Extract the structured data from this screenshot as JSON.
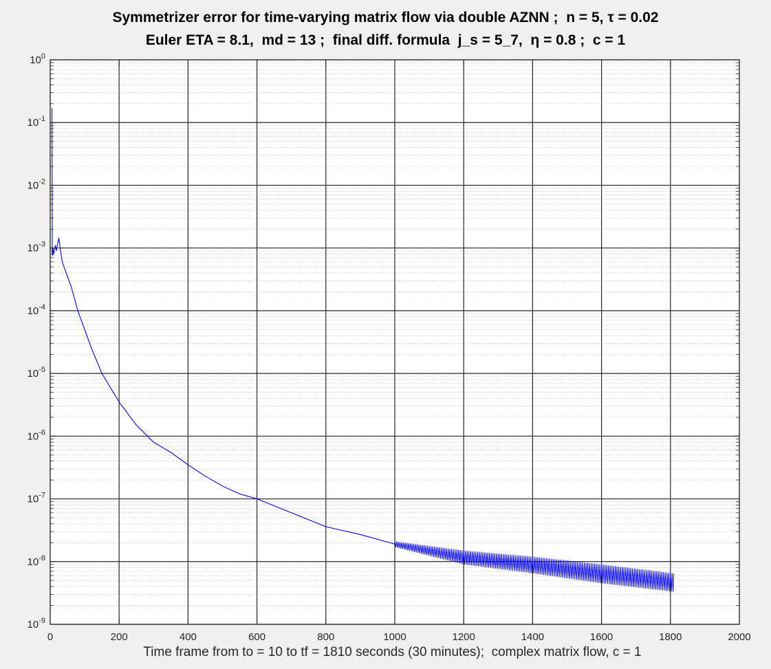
{
  "chart_data": {
    "type": "line",
    "title": "Symmetrizer error for time-varying matrix flow via double AZNN ;  n = 5, τ = 0.02",
    "subtitle": "Euler ETA = 8.1,  md = 13 ;  final diff. formula  j_s = 5_7,  η = 0.8 ;  c = 1",
    "xlabel": "Time frame from to = 10 to tf = 1810 seconds (30 minutes);  complex matrix flow, c = 1",
    "ylabel": "",
    "xlim": [
      0,
      2000
    ],
    "ylim": [
      1e-09,
      1
    ],
    "yscale": "log",
    "grid": "major and minor",
    "line_color": "#0000ff",
    "x_ticks": [
      0,
      200,
      400,
      600,
      800,
      1000,
      1200,
      1400,
      1600,
      1800,
      2000
    ],
    "y_ticks": [
      {
        "value": 1e-09,
        "base": "10",
        "exp": "-9"
      },
      {
        "value": 1e-08,
        "base": "10",
        "exp": "-8"
      },
      {
        "value": 1e-07,
        "base": "10",
        "exp": "-7"
      },
      {
        "value": 1e-06,
        "base": "10",
        "exp": "-6"
      },
      {
        "value": 1e-05,
        "base": "10",
        "exp": "-5"
      },
      {
        "value": 0.0001,
        "base": "10",
        "exp": "-4"
      },
      {
        "value": 0.001,
        "base": "10",
        "exp": "-3"
      },
      {
        "value": 0.01,
        "base": "10",
        "exp": "-2"
      },
      {
        "value": 0.1,
        "base": "10",
        "exp": "-1"
      },
      {
        "value": 1,
        "base": "10",
        "exp": "0"
      }
    ],
    "series": [
      {
        "x": [
          5,
          5.5,
          6,
          7,
          8,
          10,
          12,
          15,
          18,
          22,
          25,
          30,
          35,
          40,
          50,
          60,
          70,
          80,
          100,
          120,
          150,
          200,
          250,
          300,
          350,
          400,
          450,
          500,
          550,
          600,
          700,
          800,
          900,
          1000
        ],
        "y": [
          0.17,
          0.02,
          0.0008,
          0.00075,
          0.001,
          0.0008,
          0.0009,
          0.0011,
          0.0009,
          0.0012,
          0.00145,
          0.0009,
          0.0006,
          0.0005,
          0.00035,
          0.00025,
          0.00016,
          0.0001,
          5e-05,
          2.5e-05,
          1e-05,
          3.5e-06,
          1.5e-06,
          8e-07,
          5.5e-07,
          3.5e-07,
          2.3e-07,
          1.6e-07,
          1.2e-07,
          1e-07,
          6e-08,
          3.6e-08,
          2.7e-08,
          1.9e-08
        ]
      },
      {
        "type": "oscillating band",
        "x": [
          1000,
          1200,
          1400,
          1600,
          1810
        ],
        "upper": [
          2.1e-08,
          1.5e-08,
          1.2e-08,
          9e-09,
          6.5e-09
        ],
        "lower": [
          1.7e-08,
          9e-09,
          6.5e-09,
          4.5e-09,
          3.3e-09
        ]
      }
    ]
  }
}
